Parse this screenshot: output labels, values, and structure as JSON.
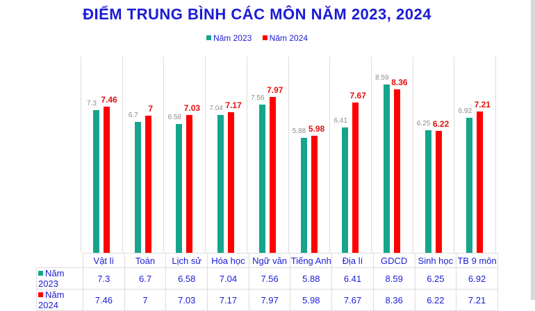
{
  "chart_data": {
    "type": "bar",
    "title": "ĐIỂM TRUNG BÌNH CÁC MÔN NĂM 2023, 2024",
    "xlabel": "",
    "ylabel": "",
    "ylim": [
      0,
      10
    ],
    "grid": "vertical category separators",
    "legend_position": "top",
    "categories": [
      "Vật lí",
      "Toán",
      "Lịch sử",
      "Hóa học",
      "Ngữ văn",
      "Tiếng Anh",
      "Địa lí",
      "GDCD",
      "Sinh học",
      "TB 9 môn"
    ],
    "series": [
      {
        "name": "Năm 2023",
        "color": "#16A58C",
        "values": [
          7.3,
          6.7,
          6.58,
          7.04,
          7.56,
          5.88,
          6.41,
          8.59,
          6.25,
          6.92
        ],
        "labels": [
          "7.3",
          "6.7",
          "6.58",
          "7.04",
          "7.56",
          "5.88",
          "6.41",
          "8.59",
          "6.25",
          "6.92"
        ]
      },
      {
        "name": "Năm 2024",
        "color": "#FF0000",
        "values": [
          7.46,
          7,
          7.03,
          7.17,
          7.97,
          5.98,
          7.67,
          8.36,
          6.22,
          7.21
        ],
        "labels": [
          "7.46",
          "7",
          "7.03",
          "7.17",
          "7.97",
          "5.98",
          "7.67",
          "8.36",
          "6.22",
          "7.21"
        ]
      }
    ],
    "data_table": true
  },
  "title": "ĐIỂM TRUNG BÌNH CÁC MÔN NĂM 2023, 2024",
  "legend": {
    "s0": "Năm 2023",
    "s1": "Năm 2024"
  }
}
